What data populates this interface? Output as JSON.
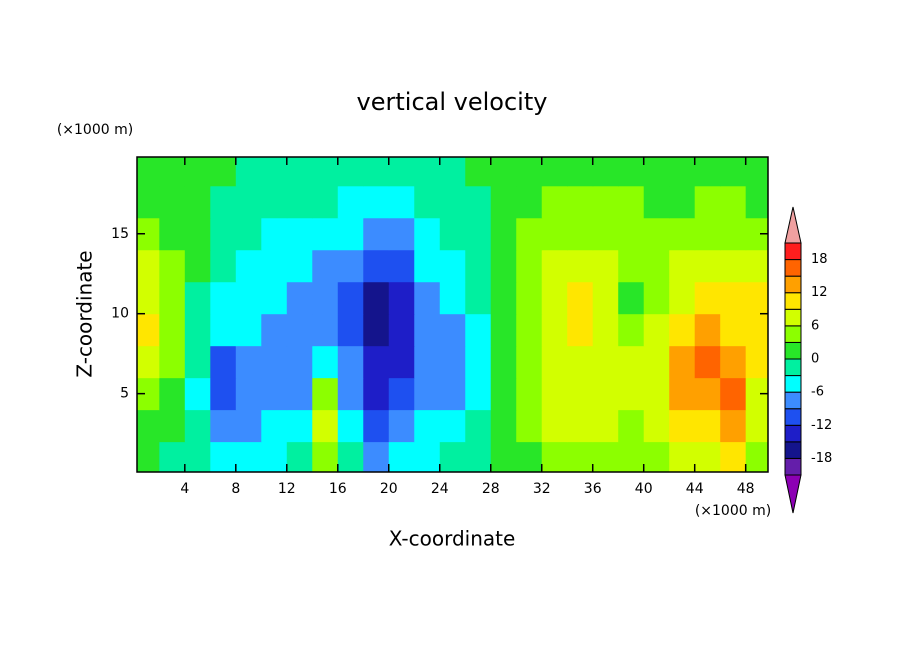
{
  "chart_data": {
    "type": "contour",
    "title": "vertical velocity",
    "xlabel": "X-coordinate",
    "ylabel": "Z-coordinate",
    "xunit": "(×1000 m)",
    "yunit": "(×1000 m)",
    "xlim": [
      0.25,
      49.75
    ],
    "ylim": [
      0.1,
      19.8
    ],
    "xticks": [
      4,
      8,
      12,
      16,
      20,
      24,
      28,
      32,
      36,
      40,
      44,
      48
    ],
    "yticks": [
      5,
      10,
      15
    ],
    "x": [
      1,
      3,
      5,
      7,
      9,
      11,
      13,
      15,
      17,
      19,
      21,
      23,
      25,
      27,
      29,
      31,
      33,
      35,
      37,
      39,
      41,
      43,
      45,
      47,
      49
    ],
    "z": [
      1,
      3,
      5,
      7,
      9,
      11,
      13,
      15,
      17,
      19
    ],
    "values": [
      [
        0,
        -1,
        -2,
        -4,
        -5,
        -4,
        -3,
        4,
        -3,
        -8,
        -6,
        -4,
        -3,
        -2,
        0,
        2,
        4,
        5,
        3,
        4,
        5,
        8,
        6,
        9,
        4
      ],
      [
        1,
        0,
        -3,
        -7,
        -8,
        -6,
        -5,
        7,
        -5,
        -11,
        -9,
        -6,
        -5,
        -3,
        0,
        3,
        6,
        7,
        6,
        5,
        7,
        9,
        10,
        12,
        6
      ],
      [
        4,
        2,
        -4,
        -10,
        -9,
        -7,
        -7,
        3,
        -7,
        -13,
        -11,
        -8,
        -8,
        -5,
        0,
        4,
        7,
        8,
        7,
        6,
        8,
        12,
        14,
        16,
        8
      ],
      [
        7,
        3,
        -3,
        -10,
        -9,
        -8,
        -8,
        -6,
        -9,
        -15,
        -13,
        -9,
        -9,
        -5,
        1,
        4,
        7,
        8,
        7,
        6,
        7,
        14,
        17,
        12,
        9
      ],
      [
        9,
        4,
        -2,
        -6,
        -6,
        -7,
        -8,
        -8,
        -10,
        -17,
        -14,
        -9,
        -7,
        -4,
        1,
        4,
        7,
        9,
        6,
        4,
        6,
        11,
        13,
        10,
        10
      ],
      [
        8,
        4,
        -1,
        -4,
        -5,
        -6,
        -9,
        -9,
        -10,
        -16,
        -13,
        -8,
        -5,
        -3,
        1,
        4,
        8,
        9,
        6,
        2,
        5,
        8,
        9,
        9,
        10
      ],
      [
        6,
        3,
        0,
        -3,
        -4,
        -5,
        -6,
        -7,
        -9,
        -12,
        -10,
        -6,
        -4,
        -2,
        1,
        4,
        6,
        8,
        6,
        4,
        5,
        6,
        8,
        7,
        6
      ],
      [
        4,
        2,
        0,
        -2,
        -3,
        -4,
        -4,
        -5,
        -6,
        -8,
        -7,
        -5,
        -3,
        -2,
        1,
        3,
        5,
        5,
        5,
        4,
        4,
        4,
        5,
        5,
        4
      ],
      [
        2,
        1,
        0,
        -1,
        -2,
        -3,
        -3,
        -3,
        -4,
        -5,
        -4,
        -3,
        -2,
        -1,
        1,
        2,
        3,
        3,
        3,
        3,
        2,
        2,
        3,
        3,
        2
      ],
      [
        1,
        1,
        1,
        0,
        -1,
        -1,
        -1,
        -2,
        -2,
        -2,
        -2,
        -2,
        -1,
        0,
        1,
        1,
        1,
        2,
        2,
        2,
        1,
        1,
        1,
        1,
        1
      ]
    ],
    "colorbar": {
      "levels": [
        -21,
        -18,
        -15,
        -12,
        -9,
        -6,
        -3,
        0,
        3,
        6,
        9,
        12,
        15,
        18,
        21
      ],
      "ticks": [
        -18,
        -12,
        -6,
        0,
        6,
        12,
        18
      ],
      "colors": [
        "#8c00b4",
        "#641eaa",
        "#14148c",
        "#1e1ec8",
        "#1e50f0",
        "#3c8cff",
        "#00ffff",
        "#00f0a0",
        "#28e628",
        "#8cff00",
        "#d2ff00",
        "#ffe600",
        "#ffa000",
        "#ff6400",
        "#ff1e1e",
        "#f0a0a0"
      ]
    }
  }
}
